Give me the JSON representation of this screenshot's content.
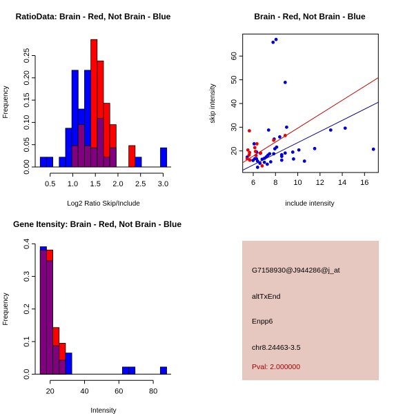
{
  "colors": {
    "blue": "#0000ff",
    "red": "#ff0000",
    "overlap": "#800080",
    "point_blue": "#0000dd",
    "point_red": "#ee0000",
    "line_red": "#cc0000",
    "line_blue": "#00008b",
    "info_bg": "#e6c8c0",
    "pval": "#a00000"
  },
  "chart_data": [
    {
      "type": "bar",
      "subtype": "overlaid-histogram",
      "title": "RatioData: Brain - Red, Not Brain - Blue",
      "xlabel": "Log2 Ratio Skip/Include",
      "ylabel": "Frequency",
      "bin_start": 0.28,
      "bin_width": 0.14,
      "xticks": [
        0.5,
        1.0,
        1.5,
        2.0,
        2.5,
        3.0
      ],
      "xtick_labels": [
        "0.5",
        "1.0",
        "1.5",
        "2.0",
        "2.5",
        "3.0"
      ],
      "yticks": [
        0,
        0.05,
        0.1,
        0.15,
        0.2,
        0.25
      ],
      "ytick_labels": [
        "0.00",
        "0.05",
        "0.10",
        "0.15",
        "0.20",
        "0.25"
      ],
      "series": [
        {
          "name": "Not Brain",
          "color": "blue",
          "values": [
            0.022,
            0.022,
            0,
            0.022,
            0.087,
            0.217,
            0.13,
            0.217,
            0.043,
            0.109,
            0.022,
            0.043,
            0,
            0,
            0,
            0.022,
            0,
            0,
            0,
            0.043
          ]
        },
        {
          "name": "Brain",
          "color": "red",
          "values": [
            0,
            0,
            0,
            0,
            0,
            0.048,
            0.095,
            0.048,
            0.286,
            0.238,
            0.143,
            0.095,
            0,
            0,
            0.048,
            0,
            0,
            0,
            0,
            0
          ]
        }
      ]
    },
    {
      "type": "scatter",
      "title": "Brain - Red, Not Brain - Blue",
      "xlabel": "include intensity",
      "ylabel": "skip intensity",
      "xlim": [
        5.05,
        17.24
      ],
      "ylim": [
        10.9,
        69.3
      ],
      "xticks": [
        6,
        8,
        10,
        12,
        14,
        16
      ],
      "xtick_labels": [
        "6",
        "8",
        "10",
        "12",
        "14",
        "16"
      ],
      "yticks": [
        20,
        30,
        40,
        50,
        60
      ],
      "ytick_labels": [
        "20",
        "30",
        "40",
        "50",
        "60"
      ],
      "series": [
        {
          "name": "Not Brain",
          "color": "point_blue",
          "x": [
            7.78,
            8.05,
            8.87,
            9.0,
            7.38,
            12.96,
            14.26,
            16.8,
            11.52,
            10.1,
            9.55,
            9.62,
            10.6,
            8.38,
            7.88,
            6.08,
            8.1,
            7.94,
            8.87,
            8.56,
            8.56,
            8.56,
            7.84,
            7.47,
            7.32,
            7.18,
            7.01,
            6.8,
            7.57,
            7.26,
            7.0,
            6.6,
            6.39,
            6.29,
            6.64,
            6.29,
            6.39,
            5.98,
            5.46,
            6.14
          ],
          "y": [
            65.8,
            67,
            48.9,
            30,
            28.8,
            28.8,
            29.6,
            20.7,
            21.0,
            20.4,
            19.5,
            16.6,
            15.7,
            25.9,
            25,
            23,
            21.6,
            20.9,
            19.1,
            18.4,
            17.7,
            16.1,
            18.8,
            18.8,
            18.2,
            17.5,
            16.9,
            16.5,
            15.4,
            14.4,
            15.2,
            14.8,
            13.1,
            19.6,
            19.0,
            16.7,
            15.7,
            16.0,
            17.4,
            16.7
          ],
          "fit": {
            "intercept": 0.0,
            "slope": 2.35,
            "color": "line_blue"
          }
        },
        {
          "name": "Brain",
          "color": "point_red",
          "x": [
            5.65,
            6.33,
            6.14,
            7.84,
            8.87,
            5.52,
            5.67,
            6.25,
            5.63,
            5.69,
            5.46,
            6.66,
            6.8,
            6.2
          ],
          "y": [
            28.5,
            23,
            21.4,
            24.5,
            26.5,
            20.4,
            19.3,
            18.1,
            18.3,
            16.1,
            16.7,
            19.1,
            13.7,
            19.8
          ],
          "fit": {
            "intercept": 0.2,
            "slope": 2.94,
            "color": "line_red"
          }
        }
      ]
    },
    {
      "type": "bar",
      "subtype": "overlaid-histogram",
      "title": "Gene Itensity: Brain - Red, Not Brain - Blue",
      "xlabel": "Intensity",
      "ylabel": "Frequency",
      "bin_start": 14.2,
      "bin_width": 3.68,
      "xticks": [
        20,
        40,
        60,
        80
      ],
      "xtick_labels": [
        "20",
        "40",
        "60",
        "80"
      ],
      "yticks": [
        0,
        0.1,
        0.2,
        0.3,
        0.4
      ],
      "ytick_labels": [
        "0.0",
        "0.1",
        "0.2",
        "0.3",
        "0.4"
      ],
      "series": [
        {
          "name": "Not Brain",
          "color": "blue",
          "values": [
            0.391,
            0.348,
            0.087,
            0.043,
            0.065,
            0,
            0,
            0,
            0,
            0,
            0,
            0,
            0,
            0.022,
            0.022,
            0,
            0,
            0,
            0,
            0.022
          ]
        },
        {
          "name": "Brain",
          "color": "red",
          "values": [
            0.381,
            0.381,
            0.143,
            0.095,
            0,
            0,
            0,
            0,
            0,
            0,
            0,
            0,
            0,
            0,
            0,
            0,
            0,
            0,
            0,
            0
          ]
        }
      ]
    }
  ],
  "info": {
    "probe": "G7158930@J944286@j_at",
    "event_type": "altTxEnd",
    "gene": "Enpp6",
    "location": "chr8.24463-3.5",
    "pval": "Pval: 2.000000"
  }
}
